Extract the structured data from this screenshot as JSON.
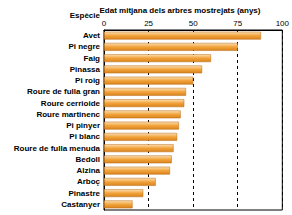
{
  "chart_data": {
    "type": "bar",
    "title": "Edat mitjana dels arbres mostrejats (anys)",
    "y_label": "Espècie",
    "orientation": "horizontal",
    "categories": [
      "Avet",
      "Pi negre",
      "Faig",
      "Pinassa",
      "Pi roig",
      "Roure de fulla gran",
      "Roure cerrioide",
      "Roure martinenc",
      "Pi pinyer",
      "Pi blanc",
      "Roure de fulla menuda",
      "Bedoll",
      "Alzina",
      "Arboç",
      "Pinastre",
      "Castanyer"
    ],
    "values": [
      88,
      75,
      60,
      55,
      50,
      46,
      45,
      43,
      42,
      41,
      39,
      38,
      37,
      29,
      22,
      16
    ],
    "color": "#f2a33a",
    "xlim": [
      0,
      100
    ],
    "xticks": [
      0,
      25,
      50,
      75,
      100
    ],
    "grid": true
  }
}
